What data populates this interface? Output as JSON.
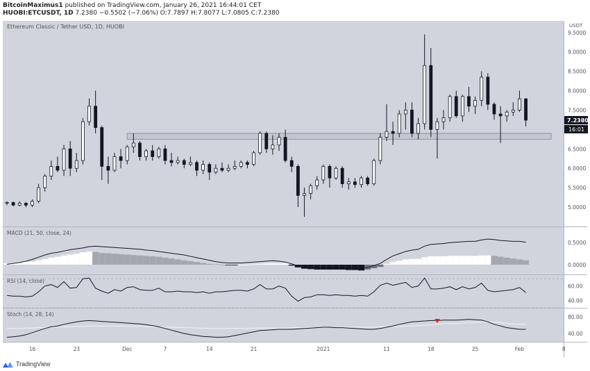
{
  "header": {
    "publisher": "BitcoinMaximus1",
    "published_text": "published on TradingView.com, January 26, 2021 16:44:01 CET",
    "symbol": "HUOBI:ETCUSDT, 1D",
    "last": "7.2380",
    "change": "−0.5502 (−7.06%)",
    "ohlc": {
      "o_label": "O:",
      "o": "7.7897",
      "h_label": "H:",
      "h": "7.8077",
      "l_label": "L:",
      "l": "7.0805",
      "c_label": "C:",
      "c": "7.2380"
    }
  },
  "footer": {
    "brand": "TradingView",
    "logo_icon": "tradingview-logo-icon"
  },
  "colors": {
    "panel_bg": "#d1d4dc",
    "bull_body": "#ffffff",
    "bear_body": "#131722",
    "wick": "#131722",
    "zone_fill": "#c4c7d0",
    "zone_border": "#7f8290",
    "macd_line": "#131722",
    "hist_pos_strong": "#ffffff",
    "hist_pos_weak": "#a5a7ae",
    "hist_neg_strong": "#131722",
    "hist_neg_weak": "#6f727c",
    "rsi_line": "#131722",
    "stoch_k": "#131722",
    "stoch_d": "#f3f3f3",
    "marker": "#e0242e",
    "price_tag_bg": "#131722",
    "price_tag_text": "#ffffff"
  },
  "chart_data": [
    {
      "type": "candlestick",
      "title": "Ethereum Classic / Tether USD, 1D, HUOBI",
      "currency_label": "USDT",
      "ylim": [
        4.5,
        9.8
      ],
      "yticks": [
        "5.0000",
        "5.5000",
        "6.0000",
        "6.5000",
        "7.0000",
        "7.5000",
        "8.0000",
        "8.5000",
        "9.0000",
        "9.5000"
      ],
      "last_price_label": "7.2380",
      "countdown_label": "16:01",
      "x_day_range": [
        0,
        86
      ],
      "x_ticks": [
        {
          "label": "16",
          "day": 4
        },
        {
          "label": "23",
          "day": 11
        },
        {
          "label": "Dec",
          "day": 19
        },
        {
          "label": "7",
          "day": 25
        },
        {
          "label": "14",
          "day": 32
        },
        {
          "label": "21",
          "day": 39
        },
        {
          "label": "2021",
          "day": 50
        },
        {
          "label": "11",
          "day": 60
        },
        {
          "label": "18",
          "day": 67
        },
        {
          "label": "25",
          "day": 74
        },
        {
          "label": "Feb",
          "day": 81
        },
        {
          "label": "8",
          "day": 88
        }
      ],
      "resistance_zone": {
        "low": 6.75,
        "high": 6.9,
        "start_day": 19,
        "end_day": 86
      },
      "candles": [
        {
          "o": 5.1,
          "h": 5.15,
          "l": 5.05,
          "c": 5.12
        },
        {
          "o": 5.12,
          "h": 5.14,
          "l": 5.02,
          "c": 5.05
        },
        {
          "o": 5.05,
          "h": 5.15,
          "l": 5.02,
          "c": 5.1
        },
        {
          "o": 5.1,
          "h": 5.13,
          "l": 5.0,
          "c": 5.05
        },
        {
          "o": 5.05,
          "h": 5.2,
          "l": 5.0,
          "c": 5.15
        },
        {
          "o": 5.15,
          "h": 5.6,
          "l": 5.1,
          "c": 5.5
        },
        {
          "o": 5.5,
          "h": 5.85,
          "l": 5.4,
          "c": 5.8
        },
        {
          "o": 5.8,
          "h": 6.2,
          "l": 5.7,
          "c": 6.05
        },
        {
          "o": 6.05,
          "h": 6.3,
          "l": 5.9,
          "c": 5.95
        },
        {
          "o": 5.95,
          "h": 6.6,
          "l": 5.8,
          "c": 6.5
        },
        {
          "o": 6.5,
          "h": 6.7,
          "l": 5.8,
          "c": 6.0
        },
        {
          "o": 6.0,
          "h": 6.4,
          "l": 5.9,
          "c": 6.2
        },
        {
          "o": 6.2,
          "h": 7.3,
          "l": 6.1,
          "c": 7.2
        },
        {
          "o": 7.2,
          "h": 7.8,
          "l": 7.1,
          "c": 7.6
        },
        {
          "o": 7.6,
          "h": 8.0,
          "l": 6.9,
          "c": 7.05
        },
        {
          "o": 7.05,
          "h": 7.1,
          "l": 5.7,
          "c": 6.05
        },
        {
          "o": 6.05,
          "h": 6.3,
          "l": 5.6,
          "c": 5.95
        },
        {
          "o": 5.95,
          "h": 6.4,
          "l": 5.9,
          "c": 6.3
        },
        {
          "o": 6.3,
          "h": 6.5,
          "l": 6.0,
          "c": 6.2
        },
        {
          "o": 6.2,
          "h": 6.6,
          "l": 6.1,
          "c": 6.55
        },
        {
          "o": 6.55,
          "h": 6.9,
          "l": 6.4,
          "c": 6.65
        },
        {
          "o": 6.65,
          "h": 6.7,
          "l": 6.2,
          "c": 6.3
        },
        {
          "o": 6.3,
          "h": 6.5,
          "l": 6.2,
          "c": 6.45
        },
        {
          "o": 6.45,
          "h": 6.6,
          "l": 6.2,
          "c": 6.3
        },
        {
          "o": 6.3,
          "h": 6.55,
          "l": 6.25,
          "c": 6.5
        },
        {
          "o": 6.5,
          "h": 6.6,
          "l": 6.1,
          "c": 6.2
        },
        {
          "o": 6.2,
          "h": 6.4,
          "l": 6.05,
          "c": 6.15
        },
        {
          "o": 6.15,
          "h": 6.3,
          "l": 6.1,
          "c": 6.2
        },
        {
          "o": 6.2,
          "h": 6.25,
          "l": 6.0,
          "c": 6.1
        },
        {
          "o": 6.1,
          "h": 6.3,
          "l": 6.05,
          "c": 6.15
        },
        {
          "o": 6.15,
          "h": 6.2,
          "l": 5.8,
          "c": 5.95
        },
        {
          "o": 5.95,
          "h": 6.2,
          "l": 5.85,
          "c": 6.1
        },
        {
          "o": 6.1,
          "h": 6.15,
          "l": 5.7,
          "c": 5.9
        },
        {
          "o": 5.9,
          "h": 6.1,
          "l": 5.85,
          "c": 6.0
        },
        {
          "o": 6.0,
          "h": 6.15,
          "l": 5.9,
          "c": 5.95
        },
        {
          "o": 5.95,
          "h": 6.1,
          "l": 5.9,
          "c": 6.0
        },
        {
          "o": 6.0,
          "h": 6.2,
          "l": 5.95,
          "c": 6.05
        },
        {
          "o": 6.05,
          "h": 6.2,
          "l": 6.0,
          "c": 6.15
        },
        {
          "o": 6.15,
          "h": 6.2,
          "l": 6.0,
          "c": 6.1
        },
        {
          "o": 6.1,
          "h": 6.45,
          "l": 6.05,
          "c": 6.4
        },
        {
          "o": 6.4,
          "h": 6.95,
          "l": 6.35,
          "c": 6.9
        },
        {
          "o": 6.9,
          "h": 6.95,
          "l": 6.4,
          "c": 6.5
        },
        {
          "o": 6.5,
          "h": 6.85,
          "l": 6.35,
          "c": 6.6
        },
        {
          "o": 6.6,
          "h": 6.9,
          "l": 6.45,
          "c": 6.8
        },
        {
          "o": 6.8,
          "h": 7.0,
          "l": 6.15,
          "c": 6.2
        },
        {
          "o": 6.2,
          "h": 6.3,
          "l": 5.9,
          "c": 6.05
        },
        {
          "o": 6.05,
          "h": 6.1,
          "l": 5.0,
          "c": 5.3
        },
        {
          "o": 5.3,
          "h": 5.5,
          "l": 4.75,
          "c": 5.35
        },
        {
          "o": 5.35,
          "h": 5.6,
          "l": 5.2,
          "c": 5.55
        },
        {
          "o": 5.55,
          "h": 5.8,
          "l": 5.45,
          "c": 5.7
        },
        {
          "o": 5.7,
          "h": 6.1,
          "l": 5.6,
          "c": 6.05
        },
        {
          "o": 6.05,
          "h": 6.1,
          "l": 5.5,
          "c": 5.75
        },
        {
          "o": 5.75,
          "h": 6.05,
          "l": 5.7,
          "c": 6.0
        },
        {
          "o": 6.0,
          "h": 6.05,
          "l": 5.5,
          "c": 5.6
        },
        {
          "o": 5.6,
          "h": 5.75,
          "l": 5.45,
          "c": 5.65
        },
        {
          "o": 5.65,
          "h": 5.75,
          "l": 5.5,
          "c": 5.58
        },
        {
          "o": 5.58,
          "h": 5.8,
          "l": 5.5,
          "c": 5.75
        },
        {
          "o": 5.75,
          "h": 5.8,
          "l": 5.55,
          "c": 5.6
        },
        {
          "o": 5.6,
          "h": 6.25,
          "l": 5.55,
          "c": 6.2
        },
        {
          "o": 6.2,
          "h": 6.9,
          "l": 6.1,
          "c": 6.8
        },
        {
          "o": 6.8,
          "h": 7.65,
          "l": 6.7,
          "c": 6.95
        },
        {
          "o": 6.95,
          "h": 7.2,
          "l": 6.6,
          "c": 6.9
        },
        {
          "o": 6.9,
          "h": 7.5,
          "l": 6.8,
          "c": 7.4
        },
        {
          "o": 7.4,
          "h": 7.7,
          "l": 7.0,
          "c": 7.5
        },
        {
          "o": 7.5,
          "h": 7.7,
          "l": 6.8,
          "c": 6.9
        },
        {
          "o": 6.9,
          "h": 7.3,
          "l": 6.75,
          "c": 7.15
        },
        {
          "o": 7.15,
          "h": 9.45,
          "l": 7.0,
          "c": 8.65
        },
        {
          "o": 8.65,
          "h": 9.1,
          "l": 6.8,
          "c": 7.0
        },
        {
          "o": 7.0,
          "h": 7.3,
          "l": 6.25,
          "c": 7.2
        },
        {
          "o": 7.2,
          "h": 7.5,
          "l": 7.0,
          "c": 7.3
        },
        {
          "o": 7.3,
          "h": 7.9,
          "l": 7.2,
          "c": 7.85
        },
        {
          "o": 7.85,
          "h": 8.0,
          "l": 7.3,
          "c": 7.35
        },
        {
          "o": 7.35,
          "h": 7.9,
          "l": 7.2,
          "c": 7.85
        },
        {
          "o": 7.85,
          "h": 8.1,
          "l": 7.45,
          "c": 7.6
        },
        {
          "o": 7.6,
          "h": 7.85,
          "l": 7.4,
          "c": 7.75
        },
        {
          "o": 7.75,
          "h": 8.5,
          "l": 7.6,
          "c": 8.35
        },
        {
          "o": 8.35,
          "h": 8.45,
          "l": 7.5,
          "c": 7.65
        },
        {
          "o": 7.65,
          "h": 7.7,
          "l": 7.25,
          "c": 7.4
        },
        {
          "o": 7.4,
          "h": 7.6,
          "l": 6.65,
          "c": 7.35
        },
        {
          "o": 7.35,
          "h": 7.5,
          "l": 7.2,
          "c": 7.45
        },
        {
          "o": 7.45,
          "h": 7.7,
          "l": 7.35,
          "c": 7.5
        },
        {
          "o": 7.5,
          "h": 8.0,
          "l": 7.45,
          "c": 7.79
        },
        {
          "o": 7.79,
          "h": 7.81,
          "l": 7.08,
          "c": 7.24
        }
      ]
    },
    {
      "type": "bar",
      "title": "MACD (21, 50, close, 24)",
      "ylim": [
        -0.22,
        0.85
      ],
      "yticks": [
        "0.0000",
        "0.5000"
      ],
      "histogram": [
        0.03,
        0.04,
        0.05,
        0.06,
        0.07,
        0.1,
        0.13,
        0.16,
        0.18,
        0.21,
        0.23,
        0.25,
        0.28,
        0.3,
        0.29,
        0.27,
        0.26,
        0.25,
        0.24,
        0.23,
        0.22,
        0.21,
        0.2,
        0.19,
        0.18,
        0.16,
        0.14,
        0.12,
        0.1,
        0.08,
        0.06,
        0.04,
        0.02,
        0.01,
        0.0,
        -0.01,
        -0.01,
        0.0,
        0.0,
        0.01,
        0.02,
        0.03,
        0.03,
        0.03,
        0.03,
        -0.02,
        -0.06,
        -0.09,
        -0.1,
        -0.11,
        -0.11,
        -0.11,
        -0.11,
        -0.11,
        -0.12,
        -0.12,
        -0.13,
        -0.11,
        -0.08,
        -0.05,
        0.02,
        0.06,
        0.09,
        0.12,
        0.13,
        0.13,
        0.17,
        0.19,
        0.19,
        0.19,
        0.2,
        0.2,
        0.2,
        0.2,
        0.2,
        0.21,
        0.21,
        0.2,
        0.18,
        0.16,
        0.14,
        0.12,
        0.1
      ],
      "macd": [
        0.01,
        0.03,
        0.05,
        0.08,
        0.12,
        0.17,
        0.22,
        0.26,
        0.28,
        0.31,
        0.34,
        0.36,
        0.38,
        0.41,
        0.42,
        0.41,
        0.4,
        0.39,
        0.38,
        0.37,
        0.36,
        0.35,
        0.33,
        0.32,
        0.3,
        0.28,
        0.26,
        0.24,
        0.22,
        0.19,
        0.16,
        0.13,
        0.1,
        0.07,
        0.05,
        0.04,
        0.04,
        0.04,
        0.05,
        0.06,
        0.07,
        0.08,
        0.09,
        0.08,
        0.06,
        0.02,
        -0.03,
        -0.06,
        -0.07,
        -0.08,
        -0.08,
        -0.08,
        -0.08,
        -0.08,
        -0.08,
        -0.08,
        -0.08,
        -0.06,
        -0.02,
        0.03,
        0.12,
        0.2,
        0.25,
        0.3,
        0.33,
        0.35,
        0.42,
        0.46,
        0.47,
        0.48,
        0.5,
        0.51,
        0.52,
        0.53,
        0.53,
        0.56,
        0.58,
        0.57,
        0.55,
        0.54,
        0.53,
        0.53,
        0.51
      ]
    },
    {
      "type": "line",
      "title": "RSI (14, close)",
      "ylim": [
        30,
        75
      ],
      "yticks": [
        "40.00",
        "60.00"
      ],
      "reference_lines": [
        70,
        30
      ],
      "values": [
        47,
        46,
        46,
        45,
        46,
        52,
        60,
        62,
        58,
        66,
        57,
        58,
        70,
        71,
        57,
        53,
        50,
        55,
        53,
        58,
        59,
        55,
        54,
        54,
        57,
        52,
        52,
        53,
        52,
        52,
        51,
        52,
        50,
        52,
        52,
        53,
        54,
        54,
        53,
        56,
        62,
        56,
        56,
        60,
        57,
        46,
        39,
        44,
        45,
        48,
        48,
        47,
        48,
        47,
        47,
        46,
        47,
        46,
        52,
        61,
        64,
        61,
        63,
        65,
        58,
        60,
        71,
        56,
        56,
        57,
        59,
        55,
        59,
        56,
        58,
        64,
        54,
        52,
        53,
        54,
        55,
        58,
        51
      ]
    },
    {
      "type": "line",
      "title": "Stoch (14, 28, 14)",
      "ylim": [
        20,
        100
      ],
      "yticks": [
        "40.00",
        "80.00"
      ],
      "series": [
        {
          "values": [
            31,
            32,
            34,
            37,
            42,
            47,
            52,
            56,
            58,
            62,
            65,
            68,
            70,
            71,
            70,
            69,
            68,
            67,
            66,
            65,
            64,
            63,
            61,
            59,
            56,
            52,
            48,
            44,
            40,
            37,
            35,
            33,
            32,
            31,
            31,
            32,
            35,
            38,
            41,
            44,
            47,
            48,
            49,
            50,
            50,
            50,
            51,
            52,
            53,
            54,
            55,
            55,
            54,
            54,
            53,
            52,
            51,
            50,
            50,
            52,
            55,
            58,
            62,
            65,
            68,
            69,
            70,
            71,
            71,
            72,
            72,
            72,
            73,
            74,
            73,
            72,
            68,
            62,
            58,
            54,
            52,
            50,
            50
          ]
        },
        {
          "values": [
            52,
            52,
            52,
            53,
            53,
            54,
            54,
            55,
            55,
            56,
            56,
            57,
            57,
            58,
            58,
            58,
            58,
            58,
            58,
            57,
            57,
            57,
            56,
            56,
            56,
            55,
            55,
            55,
            54,
            54,
            53,
            53,
            52,
            52,
            52,
            52,
            52,
            52,
            52,
            53,
            53,
            53,
            53,
            53,
            53,
            54,
            54,
            54,
            54,
            54,
            54,
            55,
            55,
            55,
            55,
            55,
            55,
            55,
            55,
            56,
            56,
            56,
            57,
            57,
            58,
            59,
            60,
            61,
            62,
            63,
            64,
            64,
            65,
            66,
            67,
            68,
            68,
            67,
            66,
            64,
            63,
            62,
            62
          ]
        }
      ],
      "marker_day": 68
    }
  ]
}
